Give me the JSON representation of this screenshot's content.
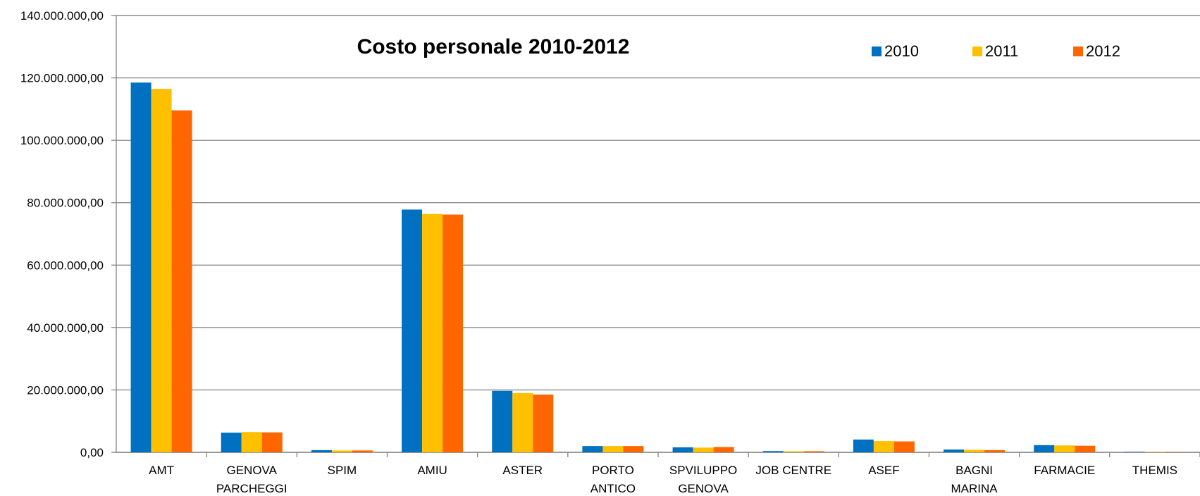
{
  "chart_data": {
    "type": "bar",
    "title": "Costo  personale 2010-2012",
    "xlabel": "",
    "ylabel": "",
    "ylim": [
      0,
      140000000
    ],
    "yticks": [
      "0,00",
      "20.000.000,00",
      "40.000.000,00",
      "60.000.000,00",
      "80.000.000,00",
      "100.000.000,00",
      "120.000.000,00",
      "140.000.000,00"
    ],
    "grid": true,
    "legend_position": "top-right",
    "categories": [
      [
        "AMT"
      ],
      [
        "GENOVA",
        "PARCHEGGI"
      ],
      [
        "SPIM"
      ],
      [
        "AMIU"
      ],
      [
        "ASTER"
      ],
      [
        "PORTO",
        "ANTICO"
      ],
      [
        "SPVILUPPO",
        "GENOVA"
      ],
      [
        "JOB CENTRE"
      ],
      [
        "ASEF"
      ],
      [
        "BAGNI",
        "MARINA"
      ],
      [
        "FARMACIE"
      ],
      [
        "THEMIS"
      ]
    ],
    "series": [
      {
        "name": "2010",
        "color": "#0070C0",
        "values": [
          118500000,
          6300000,
          700000,
          77800000,
          19700000,
          2000000,
          1600000,
          400000,
          4100000,
          900000,
          2300000,
          150000
        ]
      },
      {
        "name": "2011",
        "color": "#FFC000",
        "values": [
          116500000,
          6500000,
          600000,
          76400000,
          19000000,
          2000000,
          1500000,
          350000,
          3600000,
          800000,
          2200000,
          120000
        ]
      },
      {
        "name": "2012",
        "color": "#FF6600",
        "values": [
          109600000,
          6400000,
          600000,
          76200000,
          18500000,
          2000000,
          1700000,
          350000,
          3500000,
          700000,
          2100000,
          100000
        ]
      }
    ]
  }
}
